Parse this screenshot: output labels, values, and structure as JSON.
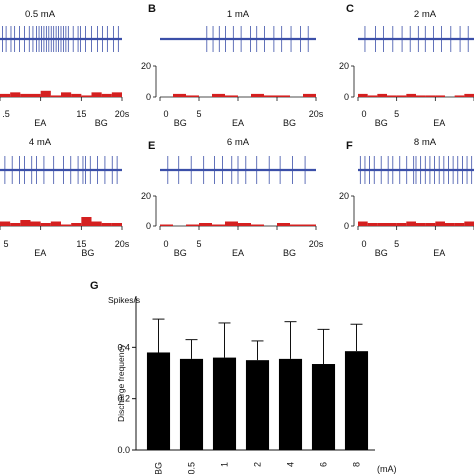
{
  "panels": [
    {
      "letter": "",
      "current": "0.5 mA",
      "x_ticks": [
        ".5",
        "",
        "15",
        "20s"
      ],
      "y_ticks": [],
      "labels": [
        {
          "text": "EA",
          "pos": 0.33
        },
        {
          "text": "BG",
          "pos": 0.83
        }
      ],
      "spikes": [
        0.02,
        0.05,
        0.09,
        0.12,
        0.16,
        0.2,
        0.24,
        0.27,
        0.3,
        0.32,
        0.34,
        0.36,
        0.38,
        0.4,
        0.42,
        0.44,
        0.46,
        0.48,
        0.5,
        0.52,
        0.54,
        0.56,
        0.6,
        0.64,
        0.66,
        0.7,
        0.75,
        0.8,
        0.84,
        0.88,
        0.93,
        0.97
      ],
      "hist": [
        2,
        3,
        2,
        2,
        4,
        1,
        3,
        2,
        1,
        3,
        2,
        3
      ]
    },
    {
      "letter": "B",
      "current": "1 mA",
      "x_ticks": [
        "0",
        "5",
        "",
        "",
        "20s"
      ],
      "y_ticks": [
        "20",
        "0"
      ],
      "labels": [
        {
          "text": "BG",
          "pos": 0.13
        },
        {
          "text": "EA",
          "pos": 0.5
        },
        {
          "text": "BG",
          "pos": 0.83
        }
      ],
      "spikes": [
        0.3,
        0.34,
        0.38,
        0.42,
        0.47,
        0.52,
        0.58,
        0.62,
        0.67,
        0.73,
        0.78,
        0.84,
        0.9,
        0.95
      ],
      "hist": [
        0,
        2,
        1,
        0,
        2,
        1,
        0,
        2,
        1,
        1,
        0,
        2
      ]
    },
    {
      "letter": "C",
      "current": "2 mA",
      "x_ticks": [
        "0",
        "5",
        "",
        ""
      ],
      "y_ticks": [
        "20",
        "0"
      ],
      "labels": [
        {
          "text": "BG",
          "pos": 0.2
        },
        {
          "text": "EA",
          "pos": 0.7
        }
      ],
      "spikes": [
        0.06,
        0.15,
        0.22,
        0.3,
        0.38,
        0.45,
        0.52,
        0.58,
        0.65,
        0.72,
        0.8,
        0.88,
        0.95
      ],
      "hist": [
        2,
        1,
        2,
        1,
        1,
        2,
        1,
        1,
        1,
        0,
        1,
        2
      ]
    },
    {
      "letter": "",
      "current": "4 mA",
      "x_ticks": [
        "5",
        "",
        "15",
        "20s"
      ],
      "y_ticks": [],
      "labels": [
        {
          "text": "EA",
          "pos": 0.33
        },
        {
          "text": "BG",
          "pos": 0.72
        }
      ],
      "spikes": [
        0.04,
        0.1,
        0.16,
        0.2,
        0.26,
        0.3,
        0.36,
        0.44,
        0.52,
        0.58,
        0.64,
        0.68,
        0.7,
        0.74,
        0.8,
        0.86,
        0.92,
        0.96
      ],
      "hist": [
        3,
        2,
        4,
        3,
        2,
        3,
        1,
        2,
        6,
        3,
        2,
        2
      ]
    },
    {
      "letter": "E",
      "current": "6 mA",
      "x_ticks": [
        "0",
        "5",
        "",
        "",
        "20s"
      ],
      "y_ticks": [
        "20",
        "0"
      ],
      "labels": [
        {
          "text": "BG",
          "pos": 0.13
        },
        {
          "text": "EA",
          "pos": 0.5
        },
        {
          "text": "BG",
          "pos": 0.83
        }
      ],
      "spikes": [
        0.05,
        0.12,
        0.2,
        0.28,
        0.35,
        0.4,
        0.46,
        0.5,
        0.55,
        0.62,
        0.7,
        0.77,
        0.85,
        0.93
      ],
      "hist": [
        1,
        0,
        1,
        2,
        1,
        3,
        2,
        1,
        0,
        2,
        1,
        1
      ]
    },
    {
      "letter": "F",
      "current": "8 mA",
      "x_ticks": [
        "0",
        "5",
        "",
        ""
      ],
      "y_ticks": [
        "20",
        "0"
      ],
      "labels": [
        {
          "text": "BG",
          "pos": 0.2
        },
        {
          "text": "EA",
          "pos": 0.7
        }
      ],
      "spikes": [
        0.02,
        0.06,
        0.1,
        0.14,
        0.2,
        0.26,
        0.3,
        0.36,
        0.42,
        0.48,
        0.5,
        0.54,
        0.58,
        0.62,
        0.66,
        0.7,
        0.74,
        0.78,
        0.82,
        0.86,
        0.9,
        0.94,
        0.98
      ],
      "hist": [
        3,
        2,
        2,
        2,
        2,
        3,
        2,
        2,
        3,
        2,
        2,
        3
      ]
    }
  ],
  "chart_data": {
    "type": "bar",
    "panel_letter": "G",
    "unit_label": "Spikes/s",
    "ylabel": "Discharge frequency",
    "x_unit": "(mA)",
    "categories": [
      "BG",
      "0.5",
      "1",
      "2",
      "4",
      "6",
      "8"
    ],
    "values": [
      0.38,
      0.355,
      0.36,
      0.35,
      0.355,
      0.335,
      0.385
    ],
    "errors": [
      0.13,
      0.075,
      0.135,
      0.075,
      0.145,
      0.135,
      0.105
    ],
    "ylim": [
      0,
      0.6
    ],
    "y_ticks": [
      "0.0",
      "0.2",
      "0.4"
    ],
    "y_tick_values": [
      0,
      0.2,
      0.4
    ]
  },
  "colors": {
    "trace": "#3b4fa8",
    "hist": "#d42020",
    "bar": "#000000"
  }
}
